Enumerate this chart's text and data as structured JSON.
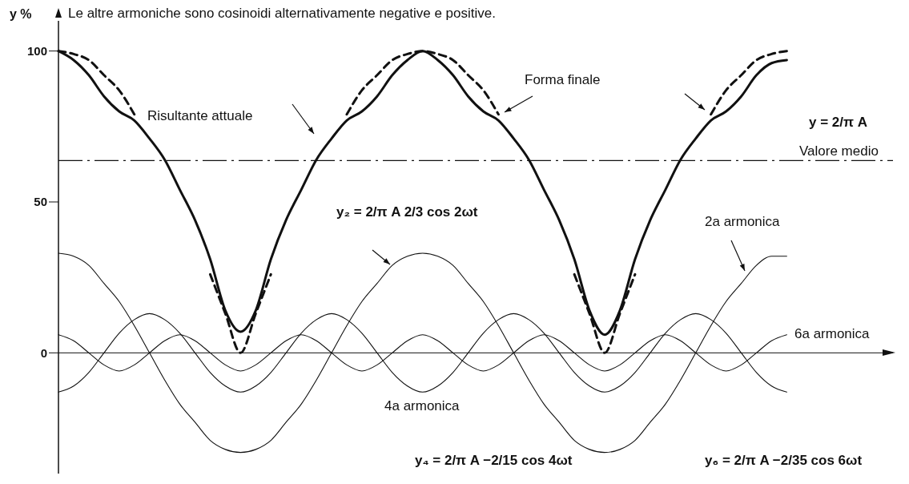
{
  "chart_data": {
    "type": "line",
    "title": "Le altre armoniche sono cosinoidi alternativamente negative e positive.",
    "ylabel": "y %",
    "categories": [
      null,
      null,
      null,
      null,
      null,
      null,
      null,
      null,
      null,
      null,
      null,
      null,
      null,
      null,
      null,
      null,
      null,
      null,
      null,
      null,
      null,
      null,
      null,
      null,
      null,
      null,
      null,
      null,
      null,
      null,
      null,
      null,
      null,
      null,
      null,
      null,
      null,
      null,
      null,
      null,
      null,
      null,
      null,
      null,
      null,
      null,
      null,
      null,
      null,
      null,
      null,
      null,
      null,
      null,
      null,
      null
    ],
    "series": [
      {
        "name": "Risultante attuale",
        "color": "#111111",
        "values": [
          100,
          97,
          92,
          85,
          80,
          77,
          71,
          64,
          54,
          44,
          31,
          14,
          7,
          14,
          31,
          44,
          54,
          64,
          71,
          77,
          80,
          85,
          92,
          97,
          100,
          97,
          92,
          85,
          80,
          77,
          71,
          64,
          54,
          44,
          31,
          14,
          6,
          14,
          31,
          44,
          54,
          64,
          71,
          77,
          80,
          85,
          92,
          96,
          97,
          null,
          null,
          null,
          null,
          null,
          null,
          null
        ]
      },
      {
        "name": "Forma finale",
        "color": "#111111",
        "line_style": "dashed",
        "values": [
          100,
          99,
          97,
          92,
          87,
          79,
          null,
          null,
          null,
          null,
          26,
          13,
          0,
          13,
          26,
          null,
          null,
          null,
          null,
          79,
          87,
          92,
          97,
          99,
          100,
          99,
          97,
          92,
          87,
          79,
          null,
          null,
          null,
          null,
          26,
          13,
          0,
          13,
          26,
          null,
          null,
          null,
          null,
          79,
          87,
          92,
          97,
          99,
          100,
          null,
          null,
          null,
          null,
          null,
          null,
          null
        ]
      },
      {
        "name": "2a armonica",
        "color": "#111111",
        "values": [
          33,
          32,
          29,
          23,
          17,
          9,
          0,
          -9,
          -17,
          -23,
          -29,
          -32,
          -33,
          -32,
          -29,
          -23,
          -17,
          -9,
          0,
          9,
          17,
          23,
          29,
          32,
          33,
          32,
          29,
          23,
          17,
          9,
          0,
          -9,
          -17,
          -23,
          -29,
          -32,
          -33,
          -32,
          -29,
          -23,
          -17,
          -9,
          0,
          9,
          17,
          23,
          29,
          32,
          32,
          null,
          null,
          null,
          null,
          null,
          null,
          null
        ]
      },
      {
        "name": "4a armonica",
        "color": "#111111",
        "values": [
          -13,
          -11,
          -6.5,
          0,
          6.5,
          11,
          13,
          11,
          6.5,
          0,
          -6.5,
          -11,
          -13,
          -11,
          -6.5,
          0,
          6.5,
          11,
          13,
          11,
          6.5,
          0,
          -6.5,
          -11,
          -13,
          -11,
          -6.5,
          0,
          6.5,
          11,
          13,
          11,
          6.5,
          0,
          -6.5,
          -11,
          -13,
          -11,
          -6.5,
          0,
          6.5,
          11,
          13,
          11,
          6.5,
          0,
          -6.5,
          -11,
          -13,
          null,
          null,
          null,
          null,
          null,
          null,
          null
        ]
      },
      {
        "name": "6a armonica",
        "color": "#111111",
        "values": [
          6,
          4,
          0,
          -4,
          -6,
          -4,
          0,
          4,
          6,
          4,
          0,
          -4,
          -6,
          -4,
          0,
          4,
          6,
          4,
          0,
          -4,
          -6,
          -4,
          0,
          4,
          6,
          4,
          0,
          -4,
          -6,
          -4,
          0,
          4,
          6,
          4,
          0,
          -4,
          -6,
          -4,
          0,
          4,
          6,
          4,
          0,
          -4,
          -6,
          -4,
          0,
          4,
          6,
          null,
          null,
          null,
          null,
          null,
          null,
          null
        ]
      }
    ],
    "ylim": [
      -40,
      110
    ],
    "yticks": [
      0,
      50,
      100
    ],
    "tick_labels": "y",
    "line_style": "solid",
    "marker": "none",
    "legend": false,
    "ref_lines": [
      {
        "axis": "y",
        "value": 63.7,
        "label": "Valore medio",
        "line_style": "dashed",
        "color": "#111111"
      }
    ],
    "annotations": [
      "y = 2/π A",
      "y₂ = 2/π A 2/3 cos 2ωt",
      "y₄ = 2/π A −2/15 cos 4ωt",
      "y₆ = 2/π A −2/35 cos 6ωt"
    ]
  }
}
